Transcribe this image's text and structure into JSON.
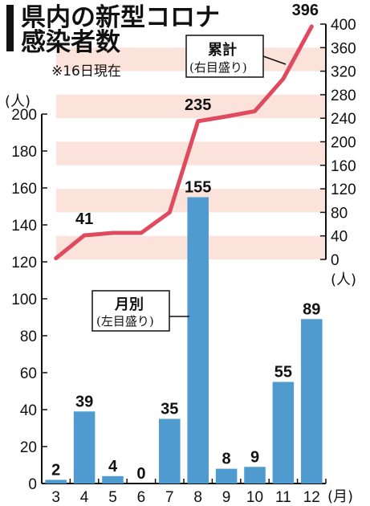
{
  "title_line1": "県内の新型コロナ",
  "title_line2": "感染者数",
  "note": "※16日現在",
  "unit_left": "(人)",
  "unit_right": "(人)",
  "unit_x": "(月)",
  "callout_monthly": {
    "main": "月別",
    "sub": "(左目盛り)"
  },
  "callout_cumulative": {
    "main": "累計",
    "sub": "(右目盛り)"
  },
  "colors": {
    "bar": "#4f9bd0",
    "line": "#e04a5f",
    "band": "#fbe3dc",
    "axis": "#111111"
  },
  "chart_data": {
    "type": "bar+line",
    "categories": [
      "3",
      "4",
      "5",
      "6",
      "7",
      "8",
      "9",
      "10",
      "11",
      "12"
    ],
    "series": [
      {
        "name": "月別",
        "type": "bar",
        "axis": "left",
        "values": [
          2,
          39,
          4,
          0,
          35,
          155,
          8,
          9,
          55,
          89
        ]
      },
      {
        "name": "累計",
        "type": "line",
        "axis": "right",
        "values": [
          2,
          41,
          45,
          45,
          80,
          235,
          243,
          252,
          307,
          396
        ]
      }
    ],
    "point_labels": [
      {
        "series": "累計",
        "category": "4",
        "text": "41"
      },
      {
        "series": "累計",
        "category": "8",
        "text": "235"
      },
      {
        "series": "累計",
        "category": "12",
        "text": "396"
      }
    ],
    "y_left": {
      "min": 0,
      "max": 200,
      "ticks": [
        "0",
        "20",
        "40",
        "60",
        "80",
        "100",
        "120",
        "140",
        "160",
        "180",
        "200"
      ]
    },
    "y_right": {
      "min": 0,
      "max": 400,
      "ticks": [
        "0",
        "40",
        "80",
        "120",
        "160",
        "200",
        "240",
        "280",
        "320",
        "360",
        "400"
      ]
    },
    "grid": "alternating horizontal bands on right-axis range"
  }
}
